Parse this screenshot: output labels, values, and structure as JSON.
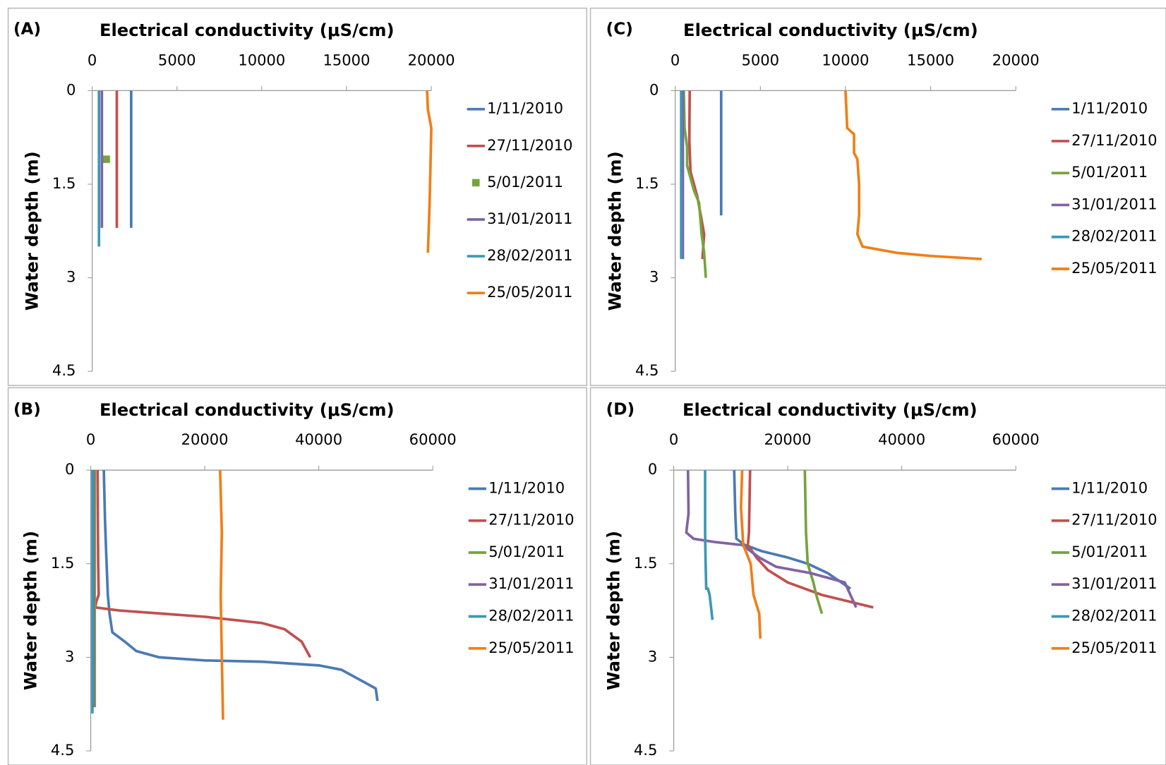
{
  "chart_data": [
    {
      "type": "line",
      "label": "(A)",
      "title": "Electrical conductivity (μS/cm)",
      "y_label": "Water depth (m)",
      "xlim": [
        0,
        20000
      ],
      "xticks": [
        0,
        5000,
        10000,
        15000,
        20000
      ],
      "ylim": [
        0,
        4.5
      ],
      "yticks": [
        0,
        1.5,
        3,
        4.5
      ],
      "y_inverted": true,
      "series": [
        {
          "name": "1/11/2010",
          "color": "#4a7ab5",
          "x": [
            2300,
            2300
          ],
          "values": [
            0,
            2.2
          ]
        },
        {
          "name": "27/11/2010",
          "color": "#c0504d",
          "x": [
            1450,
            1450
          ],
          "values": [
            0,
            2.2
          ]
        },
        {
          "name": "5/01/2011",
          "color": "#77a33d",
          "style": "marker",
          "x": [
            830
          ],
          "values": [
            1.1
          ]
        },
        {
          "name": "31/01/2011",
          "color": "#8064a2",
          "x": [
            570,
            570
          ],
          "values": [
            0,
            2.2
          ]
        },
        {
          "name": "28/02/2011",
          "color": "#3c98b4",
          "x": [
            400,
            400
          ],
          "values": [
            0,
            2.5
          ]
        },
        {
          "name": "25/05/2011",
          "color": "#f07f18",
          "x": [
            19750,
            19800,
            20000,
            19950,
            19900,
            19850,
            19800
          ],
          "values": [
            0,
            0.3,
            0.6,
            1.2,
            1.8,
            2.2,
            2.6
          ]
        }
      ]
    },
    {
      "type": "line",
      "label": "(B)",
      "title": "Electrical conductivity (μS/cm)",
      "y_label": "Water depth (m)",
      "xlim": [
        0,
        60000
      ],
      "xticks": [
        0,
        20000,
        40000,
        60000
      ],
      "ylim": [
        0,
        4.5
      ],
      "yticks": [
        0,
        1.5,
        3,
        4.5
      ],
      "y_inverted": true,
      "series": [
        {
          "name": "1/11/2010",
          "color": "#4a7ab5",
          "x": [
            2300,
            2500,
            2700,
            3000,
            3300,
            3800,
            6000,
            8000,
            12000,
            20000,
            30000,
            40000,
            44000,
            48000,
            50000,
            50300
          ],
          "values": [
            0,
            0.8,
            1.3,
            2.0,
            2.3,
            2.6,
            2.75,
            2.9,
            3.0,
            3.05,
            3.07,
            3.13,
            3.2,
            3.4,
            3.5,
            3.7
          ]
        },
        {
          "name": "27/11/2010",
          "color": "#c0504d",
          "x": [
            1200,
            1300,
            1400,
            1000,
            800,
            5000,
            20000,
            30000,
            34000,
            37000,
            38500
          ],
          "values": [
            0,
            1.5,
            2.0,
            2.1,
            2.2,
            2.25,
            2.35,
            2.45,
            2.55,
            2.75,
            3.0
          ]
        },
        {
          "name": "5/01/2011",
          "color": "#77a33d",
          "x": [
            700,
            700
          ],
          "values": [
            0,
            3.8
          ]
        },
        {
          "name": "31/01/2011",
          "color": "#8064a2",
          "x": [
            500,
            500
          ],
          "values": [
            0,
            3.8
          ]
        },
        {
          "name": "28/02/2011",
          "color": "#3c98b4",
          "x": [
            300,
            300
          ],
          "values": [
            0,
            3.9
          ]
        },
        {
          "name": "25/05/2011",
          "color": "#f07f18",
          "x": [
            22700,
            23000,
            22800,
            23000,
            23200
          ],
          "values": [
            0,
            1.0,
            2.0,
            3.0,
            4.0
          ]
        }
      ]
    },
    {
      "type": "line",
      "label": "(C)",
      "title": "Electrical conductivity (μS/cm)",
      "y_label": "Water depth (m)",
      "xlim": [
        0,
        20000
      ],
      "xticks": [
        0,
        5000,
        10000,
        15000,
        20000
      ],
      "ylim": [
        0,
        4.5
      ],
      "yticks": [
        0,
        1.5,
        3,
        4.5
      ],
      "y_inverted": true,
      "series": [
        {
          "name": "1/11/2010",
          "color": "#4a7ab5",
          "x": [
            2700,
            2700
          ],
          "values": [
            0,
            2.0
          ]
        },
        {
          "name": "27/11/2010",
          "color": "#c0504d",
          "x": [
            850,
            830,
            900,
            1300,
            1500,
            1700,
            1600
          ],
          "values": [
            0,
            0.8,
            1.3,
            1.7,
            2.0,
            2.3,
            2.7
          ]
        },
        {
          "name": "5/01/2011",
          "color": "#77a33d",
          "x": [
            500,
            550,
            700,
            700,
            1100,
            1400,
            1550,
            1700,
            1800
          ],
          "values": [
            0,
            0.6,
            0.9,
            1.2,
            1.6,
            1.8,
            2.3,
            2.6,
            3.0
          ]
        },
        {
          "name": "31/01/2011",
          "color": "#8064a2",
          "x": [
            450,
            450
          ],
          "values": [
            0,
            2.7
          ]
        },
        {
          "name": "28/02/2011",
          "color": "#3c98b4",
          "x": [
            350,
            350
          ],
          "values": [
            0,
            2.7
          ]
        },
        {
          "name": "25/05/2011",
          "color": "#f07f18",
          "x": [
            10000,
            10100,
            10500,
            10500,
            10700,
            10800,
            10800,
            10700,
            11000,
            13000,
            15000,
            18000
          ],
          "values": [
            0,
            0.6,
            0.7,
            1.0,
            1.1,
            1.5,
            2.0,
            2.3,
            2.5,
            2.6,
            2.65,
            2.7
          ]
        }
      ]
    },
    {
      "type": "line",
      "label": "(D)",
      "title": "Electrical conductivity (μS/cm)",
      "y_label": "Water depth (m)",
      "xlim": [
        0,
        60000
      ],
      "xticks": [
        0,
        20000,
        40000,
        60000
      ],
      "ylim": [
        0,
        4.5
      ],
      "yticks": [
        0,
        1.5,
        3,
        4.5
      ],
      "y_inverted": true,
      "series": [
        {
          "name": "1/11/2010",
          "color": "#4a7ab5",
          "x": [
            10600,
            10800,
            11000,
            12500,
            15500,
            20000,
            23500,
            27000,
            31000
          ],
          "values": [
            0,
            0.7,
            1.1,
            1.2,
            1.3,
            1.4,
            1.5,
            1.65,
            1.9
          ]
        },
        {
          "name": "27/11/2010",
          "color": "#c0504d",
          "x": [
            13400,
            13200,
            13000,
            14500,
            16500,
            20000,
            26000,
            35000
          ],
          "values": [
            0,
            1.0,
            1.2,
            1.4,
            1.6,
            1.8,
            2.0,
            2.2
          ]
        },
        {
          "name": "5/01/2011",
          "color": "#77a33d",
          "x": [
            23000,
            23200,
            23500,
            24500,
            25000,
            26000
          ],
          "values": [
            0,
            1.0,
            1.5,
            1.8,
            2.0,
            2.3
          ]
        },
        {
          "name": "31/01/2011",
          "color": "#8064a2",
          "x": [
            2500,
            2600,
            2200,
            3500,
            7000,
            12000,
            15000,
            18000,
            24000,
            30000,
            32000
          ],
          "values": [
            0,
            0.7,
            1.0,
            1.1,
            1.15,
            1.2,
            1.4,
            1.55,
            1.65,
            1.8,
            2.2
          ]
        },
        {
          "name": "28/02/2011",
          "color": "#3c98b4",
          "x": [
            5500,
            5500,
            5600,
            5700,
            6000,
            6300,
            6800
          ],
          "values": [
            0,
            1.0,
            1.5,
            1.9,
            1.9,
            2.0,
            2.4
          ]
        },
        {
          "name": "25/05/2011",
          "color": "#f07f18",
          "x": [
            12000,
            11800,
            12200,
            13500,
            14000,
            15000,
            15200
          ],
          "values": [
            0,
            0.6,
            1.2,
            1.5,
            2.0,
            2.3,
            2.7
          ]
        }
      ]
    }
  ]
}
